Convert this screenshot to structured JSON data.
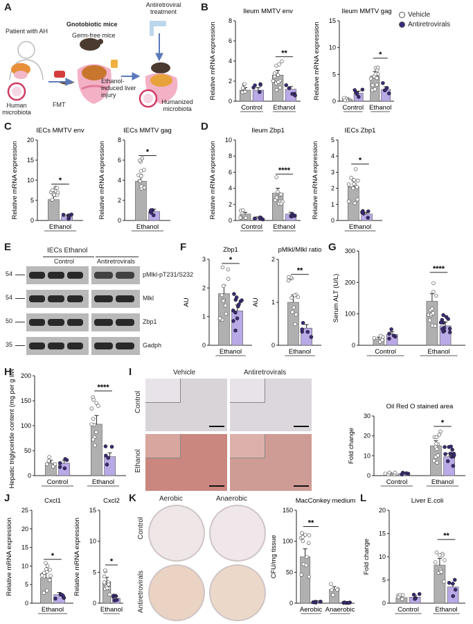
{
  "labels": {
    "A": "A",
    "B": "B",
    "C": "C",
    "D": "D",
    "E": "E",
    "F": "F",
    "G": "G",
    "H": "H",
    "I": "I",
    "J": "J",
    "K": "K",
    "L": "L"
  },
  "colors": {
    "vehicle_fill": "#cfcfcf",
    "vehicle_bar": "#b0b0b0",
    "antiretro_fill": "#b7a8e0",
    "antiretro_bar": "#b9a9e6",
    "antiretro_point": "#3b2a7a",
    "point_open": "#ffffff"
  },
  "legend": {
    "vehicle": "Vehicle",
    "antiretrovirals": "Antiretrovirals"
  },
  "schematic": {
    "patient": "Patient with AH",
    "gnotobiotic": "Gnotobiotic mice",
    "germfree": "Germ-free mice",
    "antiretroviral": "Antiretroviral treatment",
    "human_microbiota": "Human microbiota",
    "fmt": "FMT",
    "ethanol_injury": "Ethanol-induced liver injury",
    "humanized": "Humanized microbiota"
  },
  "blot": {
    "header": "IECs Ethanol",
    "groups": [
      "Control",
      "Antiretrovirals"
    ],
    "rows": [
      {
        "mw": "54",
        "name": "pMlkl-pT231/S232"
      },
      {
        "mw": "54",
        "name": "Mlkl"
      },
      {
        "mw": "50",
        "name": "Zbp1"
      },
      {
        "mw": "35",
        "name": "Gadph"
      }
    ]
  },
  "micro": {
    "cols": [
      "Vehicle",
      "Antiretrovirals"
    ],
    "rows": [
      "Control",
      "Ethanol"
    ]
  },
  "plates": {
    "cols": [
      "Aerobic",
      "Anaerobic"
    ],
    "rows": [
      "Control",
      "Antiretrovirals"
    ]
  },
  "chart_data": [
    {
      "id": "B1",
      "type": "bar",
      "title": "Ileum MMTV env",
      "ylabel": "Relative mRNA expression",
      "ylim": [
        0,
        8
      ],
      "yticks": [
        0,
        2,
        4,
        6,
        8
      ],
      "categories": [
        "Control",
        "Ethanol"
      ],
      "series": [
        {
          "name": "Vehicle",
          "values": [
            1.1,
            2.6
          ]
        },
        {
          "name": "Antiretrovirals",
          "values": [
            1.1,
            1.2
          ]
        }
      ],
      "sig": [
        {
          "cat": 1,
          "text": "**"
        }
      ]
    },
    {
      "id": "B2",
      "type": "bar",
      "title": "Ileum MMTV gag",
      "ylabel": "Relative mRNA expression",
      "ylim": [
        0,
        15
      ],
      "yticks": [
        0,
        5,
        10,
        15
      ],
      "categories": [
        "Control",
        "Ethanol"
      ],
      "series": [
        {
          "name": "Vehicle",
          "values": [
            0.4,
            4.7
          ]
        },
        {
          "name": "Antiretrovirals",
          "values": [
            1.5,
            2.2
          ]
        }
      ],
      "sig": [
        {
          "cat": 1,
          "text": "*"
        }
      ]
    },
    {
      "id": "C1",
      "type": "bar",
      "title": "IECs MMTV env",
      "ylabel": "Relative mRNA expression",
      "ylim": [
        0,
        20
      ],
      "yticks": [
        0,
        5,
        10,
        15,
        20
      ],
      "categories": [
        "Ethanol"
      ],
      "series": [
        {
          "name": "Vehicle",
          "values": [
            5.2
          ]
        },
        {
          "name": "Antiretrovirals",
          "values": [
            1.0
          ]
        }
      ],
      "sig": [
        {
          "cat": 0,
          "text": "*"
        }
      ]
    },
    {
      "id": "C2",
      "type": "bar",
      "title": "IECs MMTV gag",
      "ylabel": "Relative mRNA expression",
      "ylim": [
        0,
        8
      ],
      "yticks": [
        0,
        2,
        4,
        6,
        8
      ],
      "categories": [
        "Ethanol"
      ],
      "series": [
        {
          "name": "Vehicle",
          "values": [
            3.9
          ]
        },
        {
          "name": "Antiretrovirals",
          "values": [
            0.9
          ]
        }
      ],
      "sig": [
        {
          "cat": 0,
          "text": "*"
        }
      ]
    },
    {
      "id": "D1",
      "type": "bar",
      "title": "Ileum Zbp1",
      "ylabel": "Relative mRNA expression",
      "ylim": [
        0,
        10
      ],
      "yticks": [
        0,
        2,
        4,
        6,
        8,
        10
      ],
      "categories": [
        "Control",
        "Ethanol"
      ],
      "series": [
        {
          "name": "Vehicle",
          "values": [
            0.8,
            3.4
          ]
        },
        {
          "name": "Antiretrovirals",
          "values": [
            0.3,
            0.8
          ]
        }
      ],
      "sig": [
        {
          "cat": 1,
          "text": "****"
        }
      ]
    },
    {
      "id": "D2",
      "type": "bar",
      "title": "IECs Zbp1",
      "ylabel": "Relative mRNA expression",
      "ylim": [
        0,
        5
      ],
      "yticks": [
        0,
        1,
        2,
        3,
        4,
        5
      ],
      "categories": [
        "Ethanol"
      ],
      "series": [
        {
          "name": "Vehicle",
          "values": [
            2.1
          ]
        },
        {
          "name": "Antiretrovirals",
          "values": [
            0.4
          ]
        }
      ],
      "sig": [
        {
          "cat": 0,
          "text": "*"
        }
      ]
    },
    {
      "id": "F1",
      "type": "bar",
      "title": "Zbp1",
      "ylabel": "AU",
      "ylim": [
        0,
        3
      ],
      "yticks": [
        0,
        1,
        2,
        3
      ],
      "categories": [
        "Ethanol"
      ],
      "series": [
        {
          "name": "Vehicle",
          "values": [
            1.8
          ]
        },
        {
          "name": "Antiretrovirals",
          "values": [
            1.2
          ]
        }
      ],
      "sig": [
        {
          "cat": 0,
          "text": "*"
        }
      ]
    },
    {
      "id": "F2",
      "type": "bar",
      "title": "pMlkl/Mlkl ratio",
      "ylabel": "AU",
      "ylim": [
        0,
        2
      ],
      "yticks": [
        0,
        1,
        2
      ],
      "categories": [
        "Ethanol"
      ],
      "series": [
        {
          "name": "Vehicle",
          "values": [
            1.0
          ]
        },
        {
          "name": "Antiretrovirals",
          "values": [
            0.4
          ]
        }
      ],
      "sig": [
        {
          "cat": 0,
          "text": "**"
        }
      ]
    },
    {
      "id": "G",
      "type": "bar",
      "title": "",
      "ylabel": "Serum ALT (U/L)",
      "ylim": [
        0,
        300
      ],
      "yticks": [
        0,
        100,
        200,
        300
      ],
      "categories": [
        "Control",
        "Ethanol"
      ],
      "series": [
        {
          "name": "Vehicle",
          "values": [
            20,
            140
          ]
        },
        {
          "name": "Antiretrovirals",
          "values": [
            35,
            62
          ]
        }
      ],
      "sig": [
        {
          "cat": 1,
          "text": "****"
        }
      ]
    },
    {
      "id": "H",
      "type": "bar",
      "title": "",
      "ylabel": "Hepatic triglyceride content (mg per g liver)",
      "ylim": [
        0,
        200
      ],
      "yticks": [
        0,
        50,
        100,
        150,
        200
      ],
      "categories": [
        "Control",
        "Ethanol"
      ],
      "series": [
        {
          "name": "Vehicle",
          "values": [
            25,
            103
          ]
        },
        {
          "name": "Antiretrovirals",
          "values": [
            25,
            38
          ]
        }
      ],
      "sig": [
        {
          "cat": 1,
          "text": "****"
        }
      ]
    },
    {
      "id": "I",
      "type": "bar",
      "title": "Oil Red O stained area",
      "ylabel": "Fold change",
      "ylim": [
        0,
        30
      ],
      "yticks": [
        0,
        10,
        20,
        30
      ],
      "categories": [
        "Control",
        "Ethanol"
      ],
      "series": [
        {
          "name": "Vehicle",
          "values": [
            1,
            15
          ]
        },
        {
          "name": "Antiretrovirals",
          "values": [
            1,
            9.5
          ]
        }
      ],
      "sig": [
        {
          "cat": 1,
          "text": "*"
        }
      ]
    },
    {
      "id": "J1",
      "type": "bar",
      "title": "Cxcl1",
      "ylabel": "Relative mRNA expression",
      "ylim": [
        0,
        25
      ],
      "yticks": [
        0,
        5,
        10,
        15,
        20,
        25
      ],
      "categories": [
        "Ethanol"
      ],
      "series": [
        {
          "name": "Vehicle",
          "values": [
            6.8
          ]
        },
        {
          "name": "Antiretrovirals",
          "values": [
            2.3
          ]
        }
      ],
      "sig": [
        {
          "cat": 0,
          "text": "*"
        }
      ]
    },
    {
      "id": "J2",
      "type": "bar",
      "title": "Cxcl2",
      "ylabel": "Relative mRNA expression",
      "ylim": [
        0,
        15
      ],
      "yticks": [
        0,
        5,
        10,
        15
      ],
      "categories": [
        "Ethanol"
      ],
      "series": [
        {
          "name": "Vehicle",
          "values": [
            3.5
          ]
        },
        {
          "name": "Antiretrovirals",
          "values": [
            0.8
          ]
        }
      ],
      "sig": [
        {
          "cat": 0,
          "text": "*"
        }
      ]
    },
    {
      "id": "K",
      "type": "bar",
      "title": "MacConkey medium",
      "ylabel": "CFU/mg tissue",
      "ylim": [
        0,
        150
      ],
      "yticks": [
        0,
        50,
        100,
        150
      ],
      "categories": [
        "Aerobic",
        "Anaerobic"
      ],
      "series": [
        {
          "name": "Vehicle",
          "values": [
            75,
            22
          ]
        },
        {
          "name": "Antiretrovirals",
          "values": [
            2,
            1
          ]
        }
      ],
      "sig": [
        {
          "cat": 0,
          "text": "**"
        }
      ]
    },
    {
      "id": "L",
      "type": "bar",
      "title": "Liver E.coli",
      "ylabel": "Fold change",
      "ylim": [
        0,
        20
      ],
      "yticks": [
        0,
        5,
        10,
        15,
        20
      ],
      "categories": [
        "Control",
        "Ethanol"
      ],
      "series": [
        {
          "name": "Vehicle",
          "values": [
            1.2,
            8.2
          ]
        },
        {
          "name": "Antiretrovirals",
          "values": [
            1.3,
            3.5
          ]
        }
      ],
      "sig": [
        {
          "cat": 1,
          "text": "**"
        }
      ]
    }
  ]
}
